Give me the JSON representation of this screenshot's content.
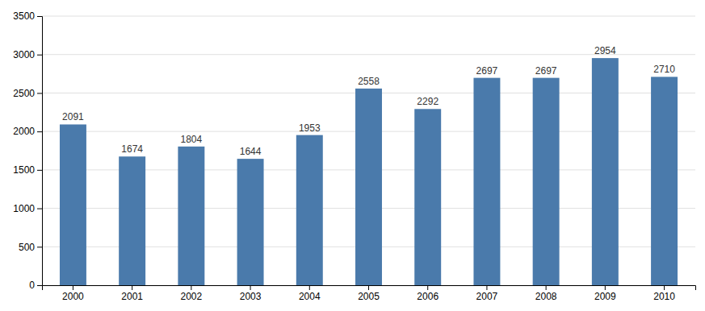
{
  "chart_data": {
    "type": "bar",
    "categories": [
      "2000",
      "2001",
      "2002",
      "2003",
      "2004",
      "2005",
      "2006",
      "2007",
      "2008",
      "2009",
      "2010"
    ],
    "values": [
      2091,
      1674,
      1804,
      1644,
      1953,
      2558,
      2292,
      2697,
      2697,
      2954,
      2710
    ],
    "color": "#4a7aab",
    "ylim": [
      0,
      3500
    ],
    "yticks": [
      0,
      500,
      1000,
      1500,
      2000,
      2500,
      3000,
      3500
    ],
    "grid": true,
    "data_labels": true
  }
}
